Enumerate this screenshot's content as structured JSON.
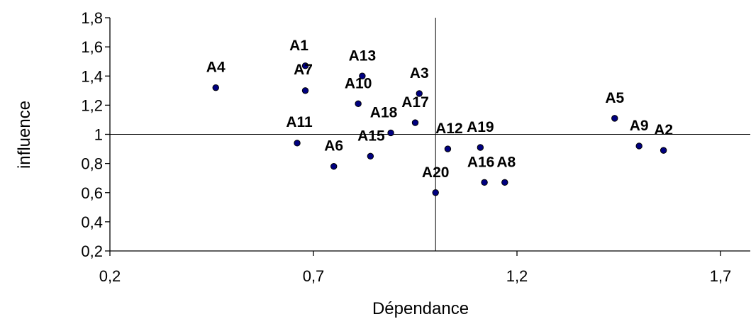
{
  "chart_data": {
    "type": "scatter",
    "title": "",
    "xlabel": "Dépendance",
    "ylabel": "influence",
    "xlim": [
      0.2,
      1.8
    ],
    "ylim": [
      0.2,
      1.8
    ],
    "x_ticks": [
      {
        "value": 0.2,
        "label": "0,2"
      },
      {
        "value": 0.7,
        "label": "0,7"
      },
      {
        "value": 1.2,
        "label": "1,2"
      },
      {
        "value": 1.7,
        "label": "1,7"
      }
    ],
    "y_ticks": [
      {
        "value": 0.2,
        "label": "0,2"
      },
      {
        "value": 0.4,
        "label": "0,4"
      },
      {
        "value": 0.6,
        "label": "0,6"
      },
      {
        "value": 0.8,
        "label": "0,8"
      },
      {
        "value": 1.0,
        "label": "1"
      },
      {
        "value": 1.2,
        "label": "1,2"
      },
      {
        "value": 1.4,
        "label": "1,4"
      },
      {
        "value": 1.6,
        "label": "1,6"
      },
      {
        "value": 1.8,
        "label": "1,8"
      }
    ],
    "reference_lines": {
      "x": 1.0,
      "y": 1.0
    },
    "grid": false,
    "legend": "none",
    "marker_color": "#000080",
    "points": [
      {
        "label": "A4",
        "x": 0.46,
        "y": 1.32
      },
      {
        "label": "A1",
        "x": 0.68,
        "y": 1.47
      },
      {
        "label": "A7",
        "x": 0.68,
        "y": 1.3
      },
      {
        "label": "A13",
        "x": 0.82,
        "y": 1.4
      },
      {
        "label": "A10",
        "x": 0.81,
        "y": 1.21
      },
      {
        "label": "A3",
        "x": 0.96,
        "y": 1.28
      },
      {
        "label": "A17",
        "x": 0.95,
        "y": 1.08
      },
      {
        "label": "A18",
        "x": 0.89,
        "y": 1.01
      },
      {
        "label": "A11",
        "x": 0.66,
        "y": 0.94
      },
      {
        "label": "A15",
        "x": 0.84,
        "y": 0.85
      },
      {
        "label": "A6",
        "x": 0.75,
        "y": 0.78
      },
      {
        "label": "A12",
        "x": 1.03,
        "y": 0.9
      },
      {
        "label": "A19",
        "x": 1.11,
        "y": 0.91
      },
      {
        "label": "A20",
        "x": 1.0,
        "y": 0.6
      },
      {
        "label": "A16",
        "x": 1.12,
        "y": 0.67
      },
      {
        "label": "A8",
        "x": 1.17,
        "y": 0.67
      },
      {
        "label": "A5",
        "x": 1.44,
        "y": 1.11
      },
      {
        "label": "A9",
        "x": 1.5,
        "y": 0.92
      },
      {
        "label": "A2",
        "x": 1.56,
        "y": 0.89
      }
    ]
  }
}
